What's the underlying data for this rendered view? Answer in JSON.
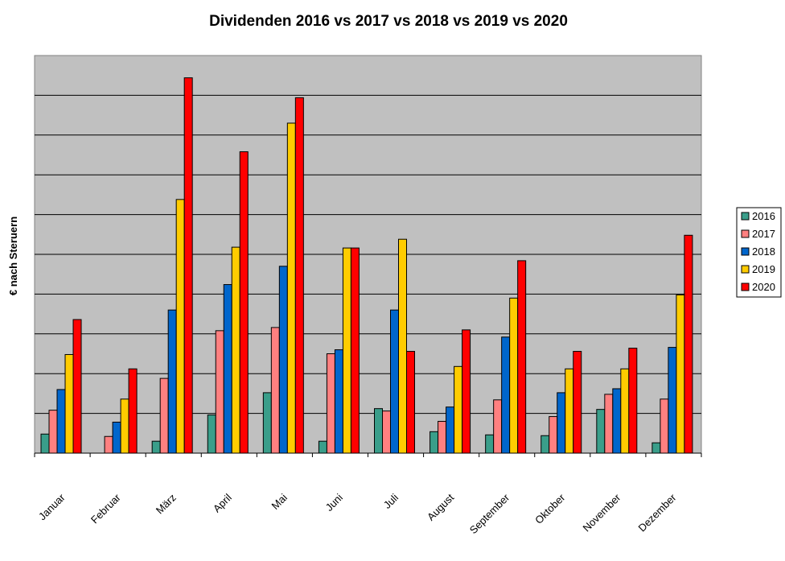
{
  "chart_data": {
    "type": "bar",
    "title": "Dividenden 2016 vs 2017 vs 2018 vs 2019 vs 2020",
    "xlabel": "",
    "ylabel": "€ nach Steruern",
    "categories": [
      "Januar",
      "Februar",
      "März",
      "April",
      "Mai",
      "Juni",
      "Juli",
      "August",
      "September",
      "Oktober",
      "November",
      "Dezember"
    ],
    "ylim": [
      0,
      100
    ],
    "grid": true,
    "legend_position": "right",
    "series": [
      {
        "name": "2016",
        "color": "#3a9e8a",
        "values": [
          4.8,
          0,
          3.0,
          9.6,
          15.2,
          3.0,
          11.2,
          5.4,
          4.6,
          4.4,
          11.0,
          2.6
        ]
      },
      {
        "name": "2017",
        "color": "#ff8080",
        "values": [
          10.8,
          4.2,
          18.8,
          30.8,
          31.6,
          25.0,
          10.6,
          8.0,
          13.4,
          9.2,
          14.8,
          13.6
        ]
      },
      {
        "name": "2018",
        "color": "#0066cc",
        "values": [
          16.0,
          7.8,
          36.0,
          42.4,
          47.0,
          26.0,
          36.0,
          11.6,
          29.2,
          15.2,
          16.2,
          26.6
        ]
      },
      {
        "name": "2019",
        "color": "#ffcc00",
        "values": [
          24.8,
          13.6,
          63.8,
          51.8,
          83.0,
          51.6,
          53.8,
          21.8,
          39.0,
          21.2,
          21.2,
          39.8
        ]
      },
      {
        "name": "2020",
        "color": "#ff0000",
        "values": [
          33.6,
          21.2,
          94.4,
          75.8,
          89.4,
          51.6,
          25.6,
          31.0,
          48.4,
          25.6,
          26.4,
          54.8
        ]
      }
    ]
  }
}
